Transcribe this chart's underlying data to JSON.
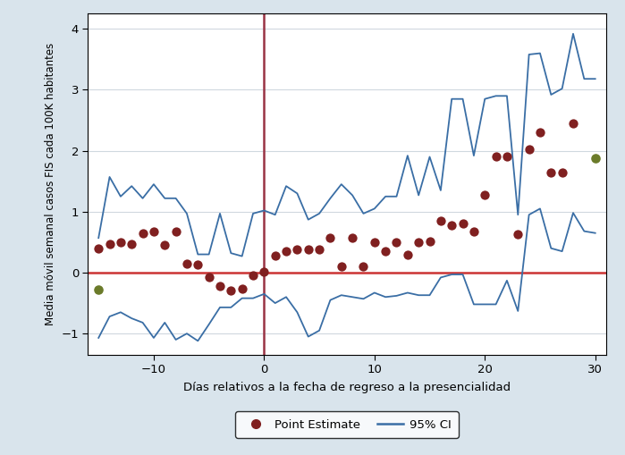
{
  "point_estimates": [
    [
      -15,
      0.4
    ],
    [
      -14,
      0.47
    ],
    [
      -13,
      0.5
    ],
    [
      -12,
      0.47
    ],
    [
      -11,
      0.65
    ],
    [
      -10,
      0.68
    ],
    [
      -9,
      0.45
    ],
    [
      -8,
      0.68
    ],
    [
      -7,
      0.15
    ],
    [
      -6,
      0.13
    ],
    [
      -5,
      -0.08
    ],
    [
      -4,
      -0.22
    ],
    [
      -3,
      -0.3
    ],
    [
      -2,
      -0.27
    ],
    [
      -1,
      -0.05
    ],
    [
      0,
      0.02
    ],
    [
      1,
      0.28
    ],
    [
      2,
      0.35
    ],
    [
      3,
      0.38
    ],
    [
      4,
      0.38
    ],
    [
      5,
      0.38
    ],
    [
      6,
      0.57
    ],
    [
      7,
      0.1
    ],
    [
      8,
      0.57
    ],
    [
      9,
      0.1
    ],
    [
      10,
      0.5
    ],
    [
      11,
      0.35
    ],
    [
      12,
      0.5
    ],
    [
      13,
      0.3
    ],
    [
      14,
      0.5
    ],
    [
      15,
      0.52
    ],
    [
      16,
      0.85
    ],
    [
      17,
      0.78
    ],
    [
      18,
      0.8
    ],
    [
      19,
      0.68
    ],
    [
      20,
      1.27
    ],
    [
      21,
      1.9
    ],
    [
      22,
      1.9
    ],
    [
      23,
      0.63
    ],
    [
      24,
      2.02
    ],
    [
      25,
      2.3
    ],
    [
      26,
      1.65
    ],
    [
      27,
      1.65
    ],
    [
      28,
      2.45
    ]
  ],
  "green_points": [
    [
      -15,
      -0.28
    ],
    [
      30,
      1.88
    ]
  ],
  "ci_upper": [
    [
      -15,
      0.57
    ],
    [
      -14,
      1.57
    ],
    [
      -13,
      1.25
    ],
    [
      -12,
      1.42
    ],
    [
      -11,
      1.22
    ],
    [
      -10,
      1.45
    ],
    [
      -9,
      1.22
    ],
    [
      -8,
      1.22
    ],
    [
      -7,
      0.97
    ],
    [
      -6,
      0.3
    ],
    [
      -5,
      0.3
    ],
    [
      -4,
      0.97
    ],
    [
      -3,
      0.32
    ],
    [
      -2,
      0.27
    ],
    [
      -1,
      0.97
    ],
    [
      0,
      1.02
    ],
    [
      1,
      0.95
    ],
    [
      2,
      1.42
    ],
    [
      3,
      1.3
    ],
    [
      4,
      0.87
    ],
    [
      5,
      0.97
    ],
    [
      6,
      1.22
    ],
    [
      7,
      1.45
    ],
    [
      8,
      1.27
    ],
    [
      9,
      0.97
    ],
    [
      10,
      1.05
    ],
    [
      11,
      1.25
    ],
    [
      12,
      1.25
    ],
    [
      13,
      1.92
    ],
    [
      14,
      1.27
    ],
    [
      15,
      1.9
    ],
    [
      16,
      1.35
    ],
    [
      17,
      2.85
    ],
    [
      18,
      2.85
    ],
    [
      19,
      1.92
    ],
    [
      20,
      2.85
    ],
    [
      21,
      2.9
    ],
    [
      22,
      2.9
    ],
    [
      23,
      0.95
    ],
    [
      24,
      3.58
    ],
    [
      25,
      3.6
    ],
    [
      26,
      2.92
    ],
    [
      27,
      3.02
    ],
    [
      28,
      3.92
    ],
    [
      29,
      3.18
    ],
    [
      30,
      3.18
    ]
  ],
  "ci_lower": [
    [
      -15,
      -1.07
    ],
    [
      -14,
      -0.72
    ],
    [
      -13,
      -0.65
    ],
    [
      -12,
      -0.75
    ],
    [
      -11,
      -0.82
    ],
    [
      -10,
      -1.07
    ],
    [
      -9,
      -0.82
    ],
    [
      -8,
      -1.1
    ],
    [
      -7,
      -1.0
    ],
    [
      -6,
      -1.12
    ],
    [
      -5,
      -0.85
    ],
    [
      -4,
      -0.57
    ],
    [
      -3,
      -0.57
    ],
    [
      -2,
      -0.42
    ],
    [
      -1,
      -0.42
    ],
    [
      0,
      -0.35
    ],
    [
      1,
      -0.5
    ],
    [
      2,
      -0.4
    ],
    [
      3,
      -0.65
    ],
    [
      4,
      -1.05
    ],
    [
      5,
      -0.95
    ],
    [
      6,
      -0.45
    ],
    [
      7,
      -0.37
    ],
    [
      8,
      -0.4
    ],
    [
      9,
      -0.43
    ],
    [
      10,
      -0.33
    ],
    [
      11,
      -0.4
    ],
    [
      12,
      -0.38
    ],
    [
      13,
      -0.33
    ],
    [
      14,
      -0.37
    ],
    [
      15,
      -0.37
    ],
    [
      16,
      -0.08
    ],
    [
      17,
      -0.03
    ],
    [
      18,
      -0.03
    ],
    [
      19,
      -0.52
    ],
    [
      20,
      -0.52
    ],
    [
      21,
      -0.52
    ],
    [
      22,
      -0.13
    ],
    [
      23,
      -0.63
    ],
    [
      24,
      0.95
    ],
    [
      25,
      1.05
    ],
    [
      26,
      0.4
    ],
    [
      27,
      0.35
    ],
    [
      28,
      0.98
    ],
    [
      29,
      0.68
    ],
    [
      30,
      0.65
    ]
  ],
  "point_color": "#802020",
  "green_color": "#6B7B2A",
  "ci_color": "#3A6EA5",
  "vline_color": "#993344",
  "hline_color": "#CC3333",
  "plot_bg": "#FFFFFF",
  "fig_bg": "#D9E4EC",
  "xlabel": "Días relativos a la fecha de regreso a la presencialidad",
  "ylabel": "Media móvil semanal casos FIS cada 100K habitantes",
  "xlim": [
    -16,
    31
  ],
  "ylim": [
    -1.35,
    4.25
  ],
  "xticks": [
    -10,
    0,
    10,
    20,
    30
  ],
  "yticks": [
    -1,
    0,
    1,
    2,
    3,
    4
  ],
  "grid_color": "#D0D8DF",
  "legend_dot_label": "Point Estimate",
  "legend_line_label": "95% CI"
}
